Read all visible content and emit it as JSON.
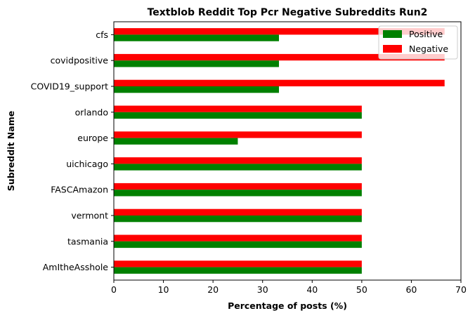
{
  "chart_data": {
    "type": "bar",
    "orientation": "horizontal",
    "title": "Textblob Reddit Top Pcr Negative Subreddits Run2",
    "xlabel": "Percentage of posts (%)",
    "ylabel": "Subreddit Name",
    "xlim": [
      0,
      70
    ],
    "xticks": [
      "0",
      "10",
      "20",
      "30",
      "40",
      "50",
      "60",
      "70"
    ],
    "categories": [
      "cfs",
      "covidpositive",
      "COVID19_support",
      "orlando",
      "europe",
      "uichicago",
      "FASCAmazon",
      "vermont",
      "tasmania",
      "AmItheAsshole"
    ],
    "series": [
      {
        "name": "Positive",
        "color": "#008000",
        "values": [
          33.3,
          33.3,
          33.3,
          50,
          25,
          50,
          50,
          50,
          50,
          50
        ]
      },
      {
        "name": "Negative",
        "color": "#ff0000",
        "values": [
          66.7,
          66.7,
          66.7,
          50,
          50,
          50,
          50,
          50,
          50,
          50
        ]
      }
    ],
    "legend": {
      "position": "top-right"
    },
    "grid": false
  }
}
